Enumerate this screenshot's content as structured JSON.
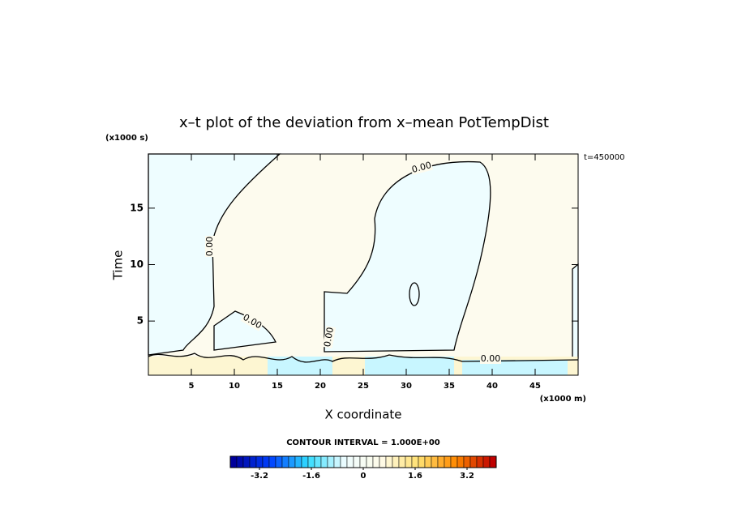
{
  "chart_data": {
    "type": "contour",
    "title": "x–t plot of the deviation from x–mean PotTempDist",
    "x_label": "X coordinate",
    "x_unit": "(x1000 m)",
    "y_label": "Time",
    "y_unit": "(x1000 s)",
    "time_note": "t=450000",
    "xlim": [
      0,
      50
    ],
    "xticks": [
      5,
      10,
      15,
      20,
      25,
      30,
      35,
      40,
      45
    ],
    "ylim": [
      0.2,
      19.8
    ],
    "yticks": [
      5,
      10,
      15
    ],
    "contour_labels": [
      "0.00",
      "0.00",
      "0.00",
      "0.00",
      "0.00"
    ],
    "contour_interval_text": "CONTOUR INTERVAL = 1.000E+00",
    "colorbar": {
      "lim": [
        -4.1,
        4.1
      ],
      "levels": 41,
      "ticks": [
        -3.2,
        -1.6,
        0,
        1.6,
        3.2
      ],
      "colors": [
        "#00009a",
        "#0040ff",
        "#30dcff",
        "#eefdff",
        "#fffbe8",
        "#ffe070",
        "#ff8a00",
        "#c00000"
      ]
    }
  }
}
